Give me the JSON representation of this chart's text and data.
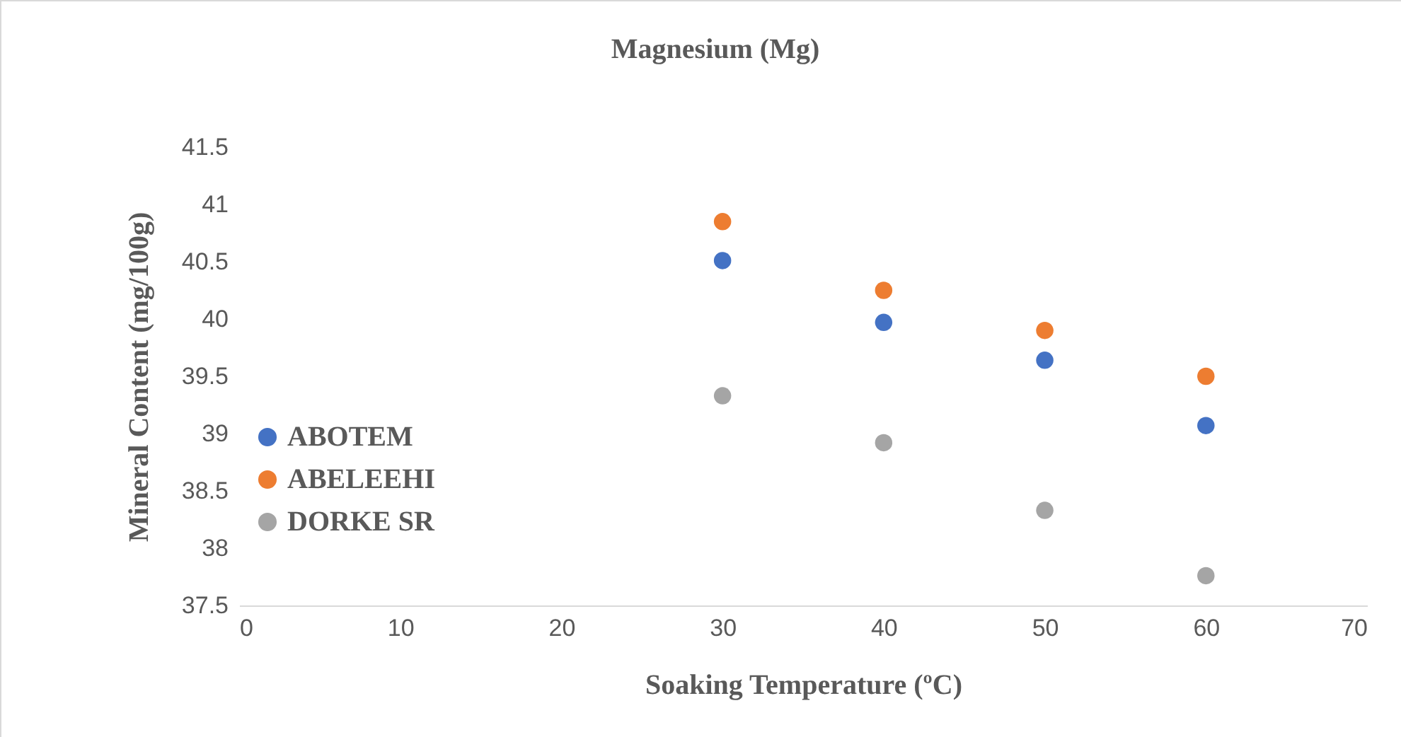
{
  "chart_data": {
    "type": "scatter",
    "title": "Magnesium (Mg)",
    "xlabel": "Soaking Temperature (ºC)",
    "ylabel": "Mineral Content (mg/100g)",
    "x": [
      30,
      40,
      50,
      60
    ],
    "series": [
      {
        "name": "ABOTEM",
        "color": "#4472c4",
        "values": [
          40.51,
          39.97,
          39.64,
          39.07
        ]
      },
      {
        "name": "ABELEEHI",
        "color": "#ed7d31",
        "values": [
          40.85,
          40.25,
          39.9,
          39.5
        ]
      },
      {
        "name": "DORKE SR",
        "color": "#a5a5a5",
        "values": [
          39.33,
          38.92,
          38.33,
          37.76
        ]
      }
    ],
    "xlim": [
      0,
      70
    ],
    "xticks": [
      0,
      10,
      20,
      30,
      40,
      50,
      60,
      70
    ],
    "ylim": [
      37.5,
      41.5
    ],
    "yticks": [
      37.5,
      38,
      38.5,
      39,
      39.5,
      40,
      40.5,
      41,
      41.5
    ],
    "grid": false,
    "legend": "left",
    "marker": "circle"
  }
}
